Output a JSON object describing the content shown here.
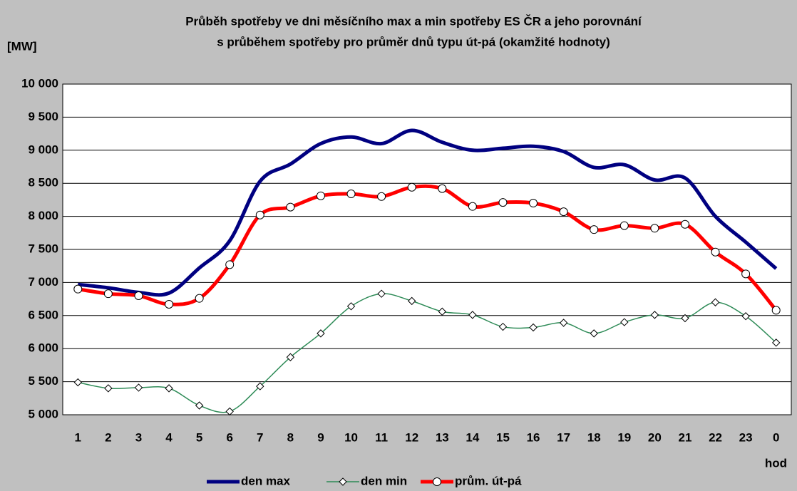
{
  "chart_data": {
    "type": "line",
    "title": [
      "Průběh spotřeby ve dni měsíčního max a min spotřeby ES ČR a jeho porovnání",
      "s  průběhem spotřeby pro průměr dnů typu út-pá (okamžité hodnoty)"
    ],
    "y_label": "[MW]",
    "x_label": "hod",
    "categories": [
      "1",
      "2",
      "3",
      "4",
      "5",
      "6",
      "7",
      "8",
      "9",
      "10",
      "11",
      "12",
      "13",
      "14",
      "15",
      "16",
      "17",
      "18",
      "19",
      "20",
      "21",
      "22",
      "23",
      "0"
    ],
    "series": [
      {
        "name": "den max",
        "color": "#000080",
        "marker": "none",
        "values": [
          6970,
          6920,
          6850,
          6840,
          7220,
          7630,
          8530,
          8790,
          9100,
          9200,
          9100,
          9300,
          9120,
          9000,
          9030,
          9060,
          8980,
          8740,
          8780,
          8550,
          8580,
          8000,
          7610,
          7210
        ]
      },
      {
        "name": "den min",
        "color": "#2e8b57",
        "marker": "diamond",
        "values": [
          5490,
          5400,
          5410,
          5400,
          5140,
          5050,
          5430,
          5870,
          6230,
          6640,
          6830,
          6720,
          6560,
          6510,
          6330,
          6320,
          6390,
          6230,
          6400,
          6510,
          6460,
          6700,
          6490,
          6090
        ]
      },
      {
        "name": "prům. út-pá",
        "color": "#ff0000",
        "marker": "circle",
        "values": [
          6900,
          6830,
          6800,
          6670,
          6760,
          7270,
          8020,
          8140,
          8310,
          8340,
          8300,
          8440,
          8420,
          8150,
          8210,
          8200,
          8070,
          7800,
          7860,
          7820,
          7880,
          7460,
          7130,
          6580
        ]
      }
    ],
    "ylim": [
      5000,
      10000
    ],
    "yticks": [
      {
        "value": 5000,
        "label": "5 000"
      },
      {
        "value": 5500,
        "label": "5 500"
      },
      {
        "value": 6000,
        "label": "6 000"
      },
      {
        "value": 6500,
        "label": "6 500"
      },
      {
        "value": 7000,
        "label": "7 000"
      },
      {
        "value": 7500,
        "label": "7 500"
      },
      {
        "value": 8000,
        "label": "8 000"
      },
      {
        "value": 8500,
        "label": "8 500"
      },
      {
        "value": 9000,
        "label": "9 000"
      },
      {
        "value": 9500,
        "label": "9 500"
      },
      {
        "value": 10000,
        "label": "10 000"
      }
    ],
    "grid": true,
    "legend": "bottom"
  }
}
